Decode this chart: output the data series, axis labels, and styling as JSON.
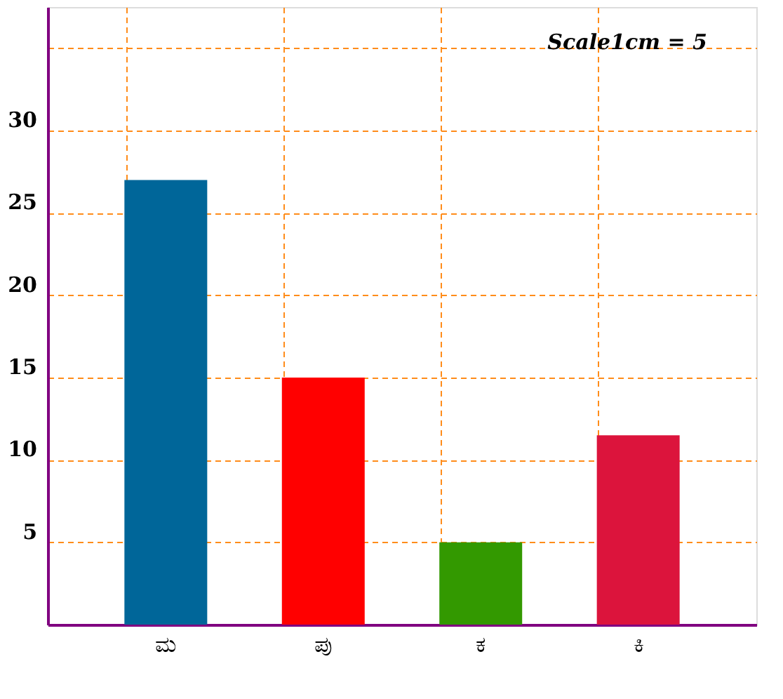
{
  "chart_data": {
    "type": "bar",
    "categories": [
      "ಮ",
      "ಪು",
      "ಕ",
      "ಕಿ"
    ],
    "values": [
      27,
      15,
      5,
      11.5
    ],
    "colors": [
      "#006699",
      "#ff0000",
      "#339900",
      "#dc143c"
    ],
    "ylim": [
      0,
      37.5
    ],
    "yticks": [
      5,
      10,
      15,
      20,
      25,
      30,
      {
        "value": 35,
        "label": null
      }
    ],
    "grid": true,
    "annotations": [
      "Scale1cm = 5"
    ]
  }
}
